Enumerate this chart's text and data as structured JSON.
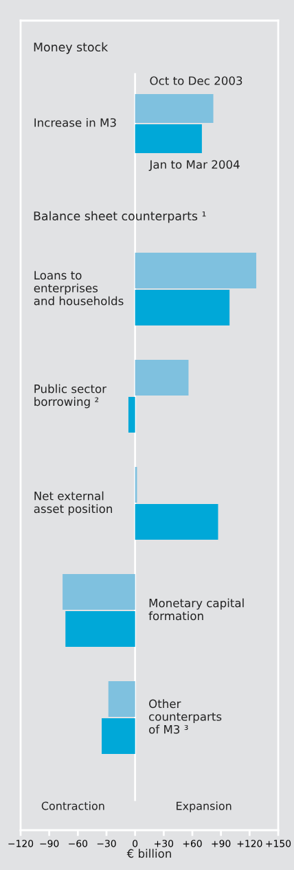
{
  "chart_data": {
    "type": "bar",
    "orientation": "horizontal",
    "categories": [
      "Increase in M3",
      "Loans to\nenterprises\nand households",
      "Public sector\nborrowing ²",
      "Net external\nasset position",
      "Monetary capital\nformation",
      "Other\ncounterparts\nof M3 ³"
    ],
    "series": [
      {
        "name": "Oct to Dec 2003",
        "color": "#7fc1df",
        "values": [
          82,
          127,
          56,
          2,
          -76,
          -28
        ]
      },
      {
        "name": "Jan to Mar 2004",
        "color": "#00a8d8",
        "values": [
          70,
          99,
          -7,
          87,
          -73,
          -35
        ]
      }
    ],
    "xlim": [
      -120,
      150
    ],
    "xticks": [
      {
        "value": -120,
        "label": "−120"
      },
      {
        "value": -90,
        "label": "−90"
      },
      {
        "value": -60,
        "label": "−60"
      },
      {
        "value": -30,
        "label": "−30"
      },
      0,
      {
        "value": 30,
        "label": "+30"
      },
      {
        "value": 60,
        "label": "+60"
      },
      {
        "value": 90,
        "label": "+90"
      },
      {
        "value": 120,
        "label": "+120"
      },
      {
        "value": 150,
        "label": "+150"
      }
    ],
    "xlabel": "€ billion",
    "annotations": [
      "Money stock",
      "Balance sheet counterparts ¹",
      "Contraction",
      "Expansion"
    ],
    "grid": false,
    "legend": false
  }
}
